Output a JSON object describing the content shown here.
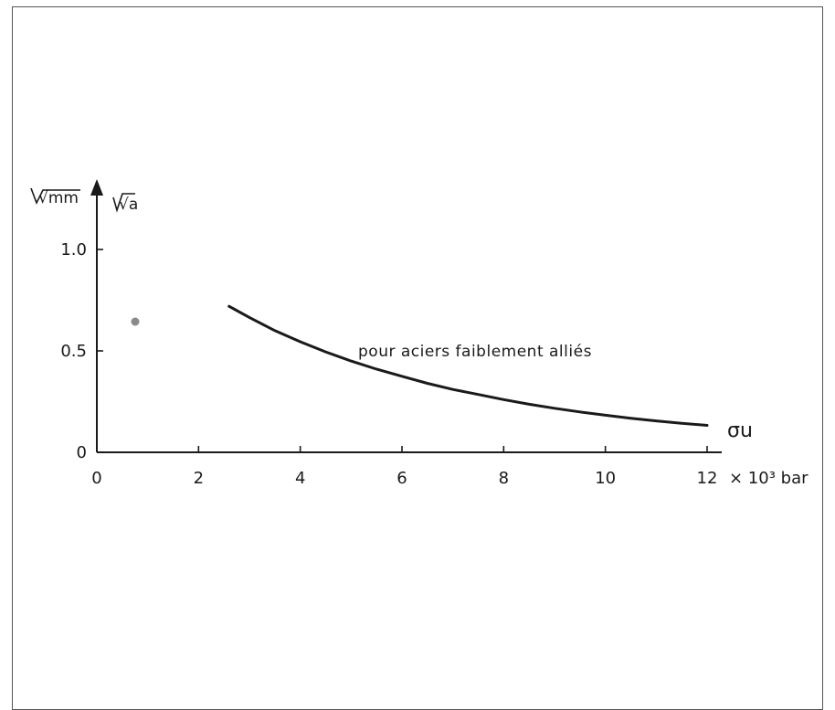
{
  "chart_data": {
    "type": "line",
    "title": "",
    "xlabel": "σu",
    "x_unit": "× 10³ bar",
    "y_units": [
      "√mm",
      "√a"
    ],
    "xlim": [
      0,
      12
    ],
    "ylim": [
      0,
      1.0
    ],
    "x_ticks": [
      "0",
      "2",
      "4",
      "6",
      "8",
      "10",
      "12"
    ],
    "y_ticks": [
      "0",
      "0.5",
      "1.0"
    ],
    "grid": false,
    "series": [
      {
        "x": [
          2.6,
          3.0,
          3.5,
          4.0,
          4.5,
          5.0,
          5.5,
          6.0,
          6.5,
          7.0,
          7.5,
          8.0,
          8.5,
          9.0,
          9.5,
          10.0,
          10.5,
          11.0,
          11.5,
          12.0
        ],
        "y": [
          0.72,
          0.665,
          0.6,
          0.545,
          0.495,
          0.45,
          0.41,
          0.375,
          0.34,
          0.31,
          0.285,
          0.26,
          0.237,
          0.217,
          0.199,
          0.183,
          0.168,
          0.155,
          0.143,
          0.133
        ]
      }
    ],
    "annotations": [
      "pour aciers faiblement alliés"
    ]
  },
  "colors": {
    "ink": "#1a1a1a",
    "dot": "#8a8a8a"
  }
}
